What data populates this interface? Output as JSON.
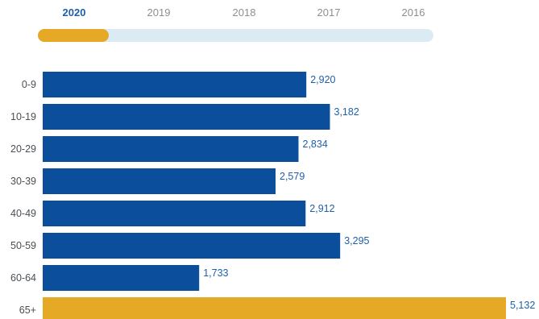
{
  "year_selector": {
    "years": [
      "2020",
      "2019",
      "2018",
      "2017",
      "2016"
    ],
    "selected": "2020",
    "progress_fraction": 0.18
  },
  "colors": {
    "bar": "#0b4f9c",
    "highlight": "#e5a925",
    "value_label": "#1f5fa8",
    "track": "#dcebf3"
  },
  "chart_data": {
    "type": "bar",
    "orientation": "horizontal",
    "categories": [
      "0-9",
      "10-19",
      "20-29",
      "30-39",
      "40-49",
      "50-59",
      "60-64",
      "65+"
    ],
    "values": [
      2920,
      3182,
      2834,
      2579,
      2912,
      3295,
      1733,
      5132
    ],
    "value_labels": [
      "2,920",
      "3,182",
      "2,834",
      "2,579",
      "2,912",
      "3,295",
      "1,733",
      "5,132"
    ],
    "highlighted_category": "65+",
    "title": "",
    "xlabel": "",
    "ylabel": "",
    "xlim": [
      0,
      5132
    ],
    "grid": false
  }
}
